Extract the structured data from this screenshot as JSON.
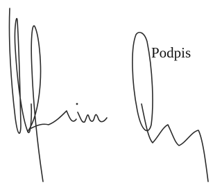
{
  "label": "Podpis"
}
